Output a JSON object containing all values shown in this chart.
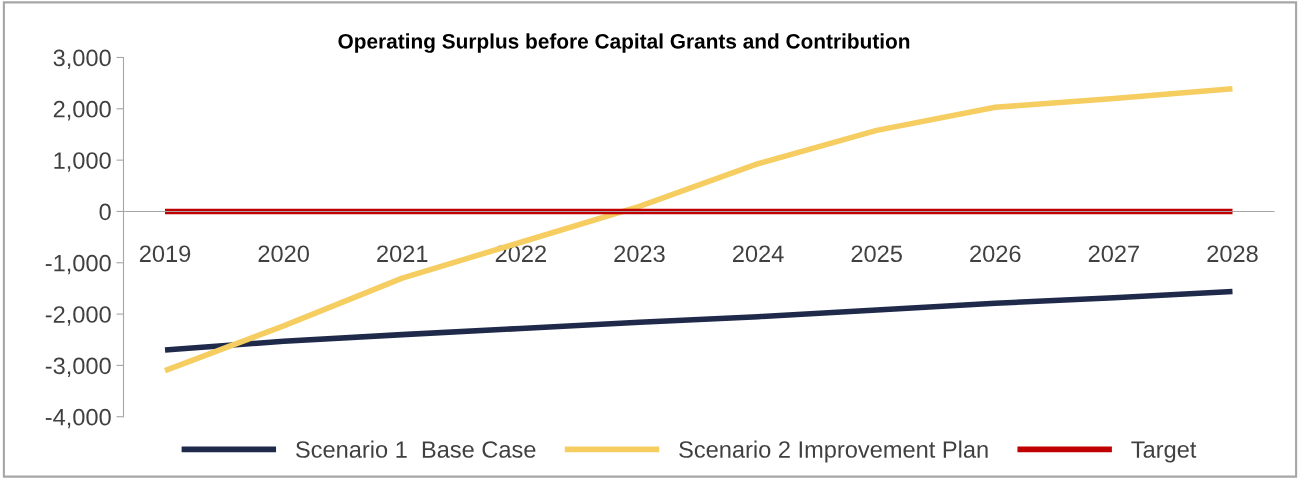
{
  "chart_data": {
    "type": "line",
    "title": "Operating Surplus before Capital Grants and Contribution",
    "categories": [
      "2019",
      "2020",
      "2021",
      "2022",
      "2023",
      "2024",
      "2025",
      "2026",
      "2027",
      "2028"
    ],
    "series": [
      {
        "name": "Scenario 1  Base Case",
        "color": "#1f2a4a",
        "values": [
          -2700,
          -2530,
          -2400,
          -2280,
          -2160,
          -2050,
          -1920,
          -1790,
          -1680,
          -1560
        ]
      },
      {
        "name": "Scenario 2 Improvement Plan",
        "color": "#f5cd60",
        "values": [
          -3100,
          -2230,
          -1300,
          -600,
          100,
          930,
          1580,
          2030,
          2200,
          2390
        ]
      },
      {
        "name": "Target",
        "color": "#c00000",
        "values": [
          0,
          0,
          0,
          0,
          0,
          0,
          0,
          0,
          0,
          0
        ]
      }
    ],
    "ylim": [
      -4000,
      3000
    ],
    "yticks": [
      {
        "value": -4000,
        "label": "-4,000"
      },
      {
        "value": -3000,
        "label": "-3,000"
      },
      {
        "value": -2000,
        "label": "-2,000"
      },
      {
        "value": -1000,
        "label": "-1,000"
      },
      {
        "value": 0,
        "label": "0"
      },
      {
        "value": 1000,
        "label": "1,000"
      },
      {
        "value": 2000,
        "label": "2,000"
      },
      {
        "value": 3000,
        "label": "3,000"
      }
    ],
    "grid": false,
    "legend": "bottom",
    "marker": "none",
    "line_style": "solid"
  }
}
